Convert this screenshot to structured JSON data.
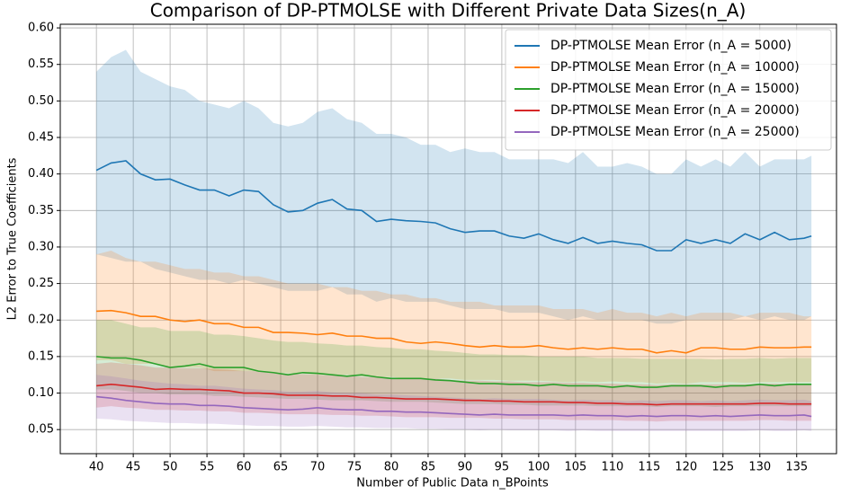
{
  "chart_data": {
    "type": "line",
    "title": "Comparison of DP-PTMOLSE with Different Private Data Sizes(n_A)",
    "x_label": "Number of Public Data n_BPoints",
    "y_label": "L2 Error to True Coefficients",
    "xlim": [
      35.1,
      140.4
    ],
    "ylim": [
      0.017,
      0.605
    ],
    "xticks": [
      40,
      45,
      50,
      55,
      60,
      65,
      70,
      75,
      80,
      85,
      90,
      95,
      100,
      105,
      110,
      115,
      120,
      125,
      130,
      135
    ],
    "yticks": [
      0.05,
      {
        "value": 0.1,
        "label": "0.10"
      },
      0.15,
      {
        "value": 0.2,
        "label": "0.20"
      },
      0.25,
      {
        "value": 0.3,
        "label": "0.30"
      },
      0.35,
      {
        "value": 0.4,
        "label": "0.40"
      },
      0.45,
      {
        "value": 0.5,
        "label": "0.50"
      },
      0.55,
      {
        "value": 0.6,
        "label": "0.60"
      }
    ],
    "grid": true,
    "legend": "upper right",
    "x": [
      40,
      42,
      44,
      46,
      48,
      50,
      52,
      54,
      56,
      58,
      60,
      62,
      64,
      66,
      68,
      70,
      72,
      74,
      76,
      78,
      80,
      82,
      84,
      86,
      88,
      90,
      92,
      94,
      96,
      98,
      100,
      102,
      104,
      106,
      108,
      110,
      112,
      114,
      116,
      118,
      120,
      122,
      124,
      126,
      128,
      130,
      132,
      134,
      136,
      137
    ],
    "series": [
      {
        "name": "DP-PTMOLSE Mean Error (n_A = 5000)",
        "color": "#1f77b4",
        "values": [
          0.405,
          0.415,
          0.418,
          0.4,
          0.392,
          0.393,
          0.385,
          0.378,
          0.378,
          0.37,
          0.378,
          0.376,
          0.358,
          0.348,
          0.35,
          0.36,
          0.365,
          0.352,
          0.35,
          0.335,
          0.338,
          0.336,
          0.335,
          0.333,
          0.325,
          0.32,
          0.322,
          0.322,
          0.315,
          0.312,
          0.318,
          0.31,
          0.305,
          0.313,
          0.305,
          0.308,
          0.305,
          0.303,
          0.295,
          0.295,
          0.31,
          0.305,
          0.31,
          0.305,
          0.318,
          0.31,
          0.32,
          0.31,
          0.312,
          0.315
        ],
        "upper": [
          0.54,
          0.56,
          0.57,
          0.54,
          0.53,
          0.52,
          0.515,
          0.5,
          0.495,
          0.49,
          0.5,
          0.49,
          0.47,
          0.465,
          0.47,
          0.485,
          0.49,
          0.475,
          0.47,
          0.455,
          0.455,
          0.45,
          0.44,
          0.44,
          0.43,
          0.435,
          0.43,
          0.43,
          0.42,
          0.42,
          0.42,
          0.42,
          0.415,
          0.43,
          0.41,
          0.41,
          0.415,
          0.41,
          0.4,
          0.4,
          0.42,
          0.41,
          0.42,
          0.41,
          0.43,
          0.41,
          0.42,
          0.42,
          0.42,
          0.425
        ],
        "lower": [
          0.29,
          0.285,
          0.28,
          0.28,
          0.27,
          0.265,
          0.26,
          0.255,
          0.255,
          0.25,
          0.255,
          0.25,
          0.245,
          0.24,
          0.24,
          0.24,
          0.245,
          0.235,
          0.235,
          0.225,
          0.23,
          0.225,
          0.225,
          0.225,
          0.22,
          0.215,
          0.215,
          0.215,
          0.21,
          0.21,
          0.21,
          0.205,
          0.2,
          0.205,
          0.2,
          0.2,
          0.2,
          0.2,
          0.195,
          0.195,
          0.2,
          0.2,
          0.2,
          0.2,
          0.205,
          0.2,
          0.205,
          0.2,
          0.2,
          0.205
        ]
      },
      {
        "name": "DP-PTMOLSE Mean Error (n_A = 10000)",
        "color": "#ff7f0e",
        "values": [
          0.212,
          0.213,
          0.21,
          0.205,
          0.205,
          0.2,
          0.198,
          0.2,
          0.195,
          0.195,
          0.19,
          0.19,
          0.183,
          0.183,
          0.182,
          0.18,
          0.182,
          0.178,
          0.178,
          0.175,
          0.175,
          0.17,
          0.168,
          0.17,
          0.168,
          0.165,
          0.163,
          0.165,
          0.163,
          0.163,
          0.165,
          0.162,
          0.16,
          0.162,
          0.16,
          0.162,
          0.16,
          0.16,
          0.155,
          0.158,
          0.155,
          0.162,
          0.162,
          0.16,
          0.16,
          0.163,
          0.162,
          0.162,
          0.163,
          0.163
        ],
        "upper": [
          0.29,
          0.295,
          0.285,
          0.28,
          0.28,
          0.275,
          0.27,
          0.27,
          0.265,
          0.265,
          0.26,
          0.26,
          0.255,
          0.25,
          0.25,
          0.25,
          0.245,
          0.245,
          0.24,
          0.24,
          0.235,
          0.235,
          0.23,
          0.23,
          0.225,
          0.225,
          0.225,
          0.22,
          0.22,
          0.22,
          0.22,
          0.215,
          0.215,
          0.215,
          0.21,
          0.215,
          0.21,
          0.21,
          0.205,
          0.21,
          0.205,
          0.21,
          0.21,
          0.21,
          0.205,
          0.21,
          0.21,
          0.21,
          0.205,
          0.205
        ],
        "lower": [
          0.145,
          0.145,
          0.14,
          0.14,
          0.14,
          0.135,
          0.135,
          0.135,
          0.13,
          0.13,
          0.13,
          0.13,
          0.128,
          0.127,
          0.127,
          0.125,
          0.125,
          0.125,
          0.123,
          0.122,
          0.122,
          0.12,
          0.12,
          0.12,
          0.12,
          0.118,
          0.118,
          0.118,
          0.117,
          0.117,
          0.117,
          0.116,
          0.115,
          0.116,
          0.115,
          0.116,
          0.115,
          0.115,
          0.113,
          0.114,
          0.113,
          0.115,
          0.115,
          0.115,
          0.114,
          0.115,
          0.115,
          0.115,
          0.115,
          0.115
        ]
      },
      {
        "name": "DP-PTMOLSE Mean Error (n_A = 15000)",
        "color": "#2ca02c",
        "values": [
          0.15,
          0.148,
          0.148,
          0.145,
          0.14,
          0.135,
          0.137,
          0.14,
          0.135,
          0.135,
          0.135,
          0.13,
          0.128,
          0.125,
          0.128,
          0.127,
          0.125,
          0.123,
          0.125,
          0.122,
          0.12,
          0.12,
          0.12,
          0.118,
          0.117,
          0.115,
          0.113,
          0.113,
          0.112,
          0.112,
          0.11,
          0.112,
          0.11,
          0.11,
          0.11,
          0.108,
          0.11,
          0.108,
          0.108,
          0.11,
          0.11,
          0.11,
          0.108,
          0.11,
          0.11,
          0.112,
          0.11,
          0.112,
          0.112,
          0.112
        ],
        "upper": [
          0.2,
          0.2,
          0.195,
          0.19,
          0.19,
          0.185,
          0.185,
          0.185,
          0.18,
          0.18,
          0.178,
          0.175,
          0.172,
          0.17,
          0.17,
          0.168,
          0.167,
          0.165,
          0.165,
          0.163,
          0.162,
          0.16,
          0.16,
          0.158,
          0.157,
          0.155,
          0.153,
          0.153,
          0.152,
          0.152,
          0.15,
          0.15,
          0.15,
          0.15,
          0.148,
          0.148,
          0.148,
          0.147,
          0.147,
          0.147,
          0.147,
          0.147,
          0.146,
          0.147,
          0.147,
          0.148,
          0.147,
          0.148,
          0.148,
          0.148
        ],
        "lower": [
          0.105,
          0.105,
          0.103,
          0.1,
          0.1,
          0.098,
          0.098,
          0.098,
          0.096,
          0.096,
          0.095,
          0.094,
          0.093,
          0.092,
          0.092,
          0.091,
          0.09,
          0.09,
          0.09,
          0.089,
          0.088,
          0.088,
          0.088,
          0.087,
          0.086,
          0.085,
          0.085,
          0.085,
          0.084,
          0.084,
          0.083,
          0.083,
          0.083,
          0.083,
          0.082,
          0.082,
          0.082,
          0.082,
          0.081,
          0.082,
          0.082,
          0.082,
          0.081,
          0.082,
          0.082,
          0.082,
          0.082,
          0.082,
          0.082,
          0.082
        ]
      },
      {
        "name": "DP-PTMOLSE Mean Error (n_A = 20000)",
        "color": "#d62728",
        "values": [
          0.11,
          0.112,
          0.11,
          0.108,
          0.105,
          0.106,
          0.105,
          0.105,
          0.104,
          0.103,
          0.1,
          0.1,
          0.099,
          0.097,
          0.097,
          0.097,
          0.096,
          0.096,
          0.094,
          0.094,
          0.093,
          0.092,
          0.092,
          0.092,
          0.091,
          0.09,
          0.09,
          0.089,
          0.089,
          0.088,
          0.088,
          0.088,
          0.087,
          0.087,
          0.086,
          0.086,
          0.085,
          0.085,
          0.084,
          0.085,
          0.085,
          0.085,
          0.085,
          0.085,
          0.085,
          0.086,
          0.086,
          0.085,
          0.085,
          0.085
        ],
        "upper": [
          0.14,
          0.142,
          0.14,
          0.138,
          0.135,
          0.135,
          0.134,
          0.134,
          0.133,
          0.132,
          0.13,
          0.13,
          0.128,
          0.126,
          0.126,
          0.125,
          0.124,
          0.124,
          0.122,
          0.122,
          0.121,
          0.12,
          0.12,
          0.12,
          0.118,
          0.117,
          0.117,
          0.116,
          0.116,
          0.115,
          0.115,
          0.115,
          0.114,
          0.114,
          0.113,
          0.113,
          0.112,
          0.112,
          0.111,
          0.112,
          0.112,
          0.112,
          0.112,
          0.112,
          0.112,
          0.113,
          0.113,
          0.112,
          0.112,
          0.112
        ],
        "lower": [
          0.08,
          0.082,
          0.08,
          0.079,
          0.077,
          0.077,
          0.076,
          0.076,
          0.075,
          0.075,
          0.073,
          0.073,
          0.072,
          0.071,
          0.071,
          0.071,
          0.07,
          0.07,
          0.069,
          0.069,
          0.068,
          0.067,
          0.067,
          0.067,
          0.066,
          0.066,
          0.066,
          0.065,
          0.065,
          0.064,
          0.064,
          0.064,
          0.063,
          0.063,
          0.063,
          0.063,
          0.062,
          0.062,
          0.061,
          0.062,
          0.062,
          0.062,
          0.062,
          0.062,
          0.062,
          0.063,
          0.063,
          0.062,
          0.062,
          0.062
        ]
      },
      {
        "name": "DP-PTMOLSE Mean Error (n_A = 25000)",
        "color": "#9467bd",
        "values": [
          0.095,
          0.093,
          0.09,
          0.088,
          0.086,
          0.085,
          0.085,
          0.083,
          0.083,
          0.082,
          0.08,
          0.079,
          0.078,
          0.077,
          0.078,
          0.08,
          0.078,
          0.077,
          0.077,
          0.075,
          0.075,
          0.074,
          0.074,
          0.073,
          0.072,
          0.071,
          0.07,
          0.071,
          0.07,
          0.07,
          0.07,
          0.07,
          0.069,
          0.07,
          0.069,
          0.069,
          0.068,
          0.069,
          0.068,
          0.069,
          0.069,
          0.068,
          0.069,
          0.068,
          0.069,
          0.07,
          0.069,
          0.069,
          0.07,
          0.068
        ],
        "upper": [
          0.125,
          0.123,
          0.12,
          0.117,
          0.115,
          0.113,
          0.112,
          0.11,
          0.11,
          0.108,
          0.106,
          0.105,
          0.104,
          0.102,
          0.102,
          0.103,
          0.101,
          0.1,
          0.1,
          0.098,
          0.098,
          0.097,
          0.096,
          0.095,
          0.094,
          0.093,
          0.092,
          0.093,
          0.092,
          0.092,
          0.092,
          0.091,
          0.09,
          0.091,
          0.09,
          0.09,
          0.089,
          0.09,
          0.089,
          0.09,
          0.09,
          0.089,
          0.09,
          0.089,
          0.09,
          0.091,
          0.09,
          0.09,
          0.091,
          0.089
        ],
        "lower": [
          0.065,
          0.064,
          0.062,
          0.061,
          0.06,
          0.059,
          0.059,
          0.058,
          0.058,
          0.057,
          0.056,
          0.055,
          0.055,
          0.054,
          0.054,
          0.055,
          0.054,
          0.053,
          0.053,
          0.052,
          0.052,
          0.052,
          0.051,
          0.051,
          0.05,
          0.05,
          0.049,
          0.05,
          0.049,
          0.049,
          0.049,
          0.049,
          0.048,
          0.049,
          0.048,
          0.048,
          0.048,
          0.048,
          0.048,
          0.048,
          0.048,
          0.048,
          0.048,
          0.048,
          0.048,
          0.049,
          0.048,
          0.048,
          0.049,
          0.048
        ]
      }
    ]
  }
}
